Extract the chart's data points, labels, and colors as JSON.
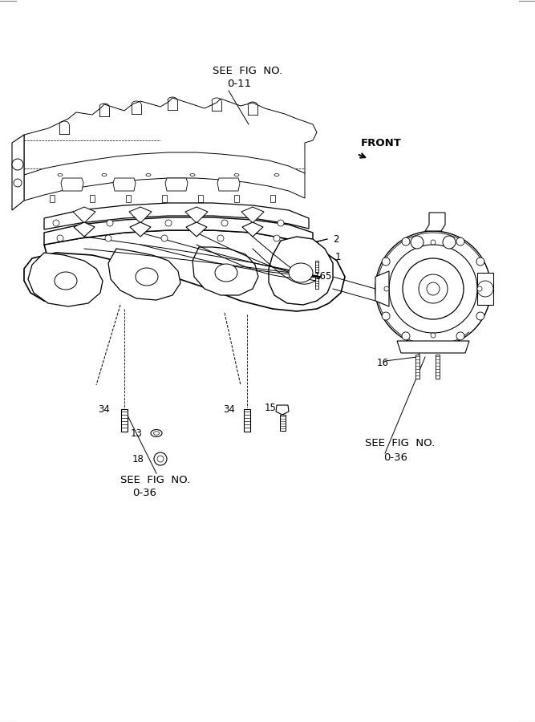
{
  "bg_color": "#ffffff",
  "line_color": "#000000",
  "border_color": "#808080",
  "fig_width": 6.67,
  "fig_height": 9.0,
  "dpi": 100,
  "labels": {
    "see_fig_top": "SEE  FIG  NO.",
    "see_fig_top2": "0-11",
    "front": "FRONT",
    "num_2": "2",
    "num_1": "1",
    "num_165": "165",
    "num_16": "16",
    "num_34a": "34",
    "num_13": "13",
    "num_18": "18",
    "num_34b": "34",
    "num_15": "15",
    "see_fig_bl1": "SEE  FIG  NO.",
    "see_fig_bl2": "0-36",
    "see_fig_br1": "SEE  FIG  NO.",
    "see_fig_br2": "0-36"
  },
  "font_size_labels": 9.5,
  "font_size_nums": 8.5,
  "font_family": "DejaVu Sans"
}
